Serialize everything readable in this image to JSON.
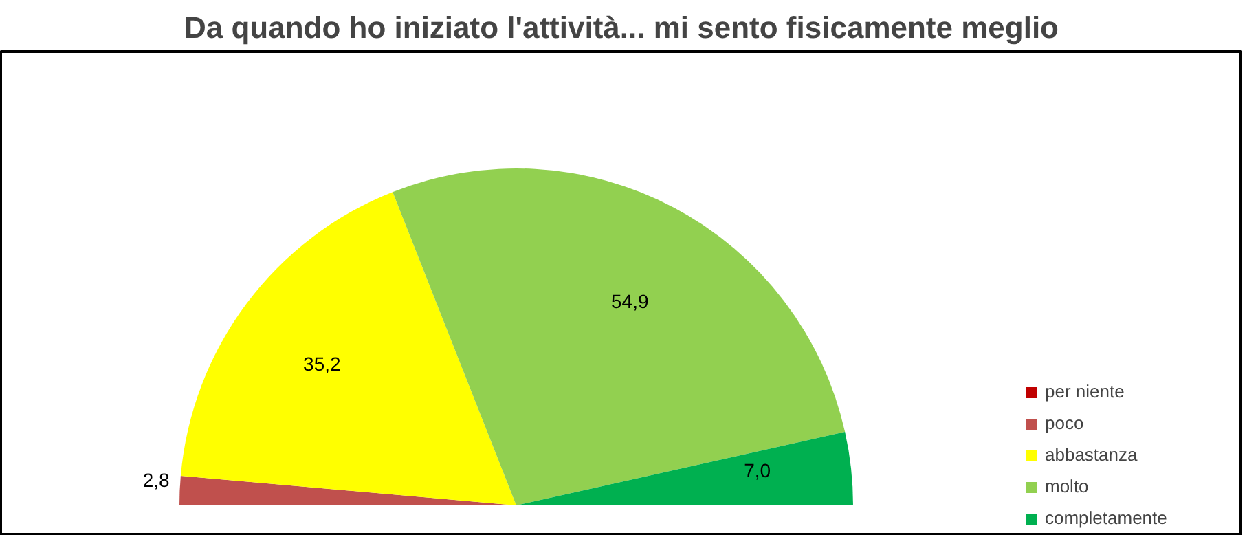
{
  "chart_data": {
    "type": "pie",
    "title": "Da quando ho iniziato l'attività... mi sento fisicamente meglio",
    "categories": [
      "per niente",
      "poco",
      "abbastanza",
      "molto",
      "completamente"
    ],
    "values": [
      0,
      2.8,
      35.2,
      54.9,
      7.0
    ],
    "value_labels": [
      null,
      "2,8",
      "35,2",
      "54,9",
      "7,0"
    ],
    "colors": [
      "#c00000",
      "#c0504d",
      "#ffff00",
      "#92d050",
      "#00b050"
    ],
    "legend": "right"
  }
}
